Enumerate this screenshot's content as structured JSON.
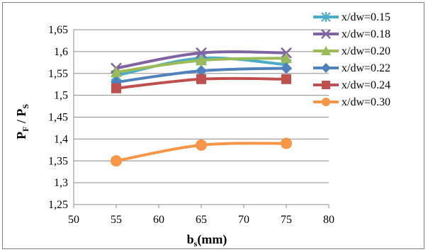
{
  "chart_data": {
    "type": "line",
    "x": [
      55,
      65,
      75
    ],
    "xlim": [
      50,
      80
    ],
    "xticks": [
      "50",
      "55",
      "60",
      "65",
      "70",
      "75",
      "80"
    ],
    "ylim": [
      1.25,
      1.65
    ],
    "yticks": [
      "1,25",
      "1,3",
      "1,35",
      "1,4",
      "1,45",
      "1,5",
      "1,55",
      "1,6",
      "1,65"
    ],
    "grid": "horizontal",
    "legend": "top-right",
    "xlabel": {
      "main": "b",
      "sub": "s",
      "tail": "(mm)"
    },
    "ylabel": {
      "p1": "P",
      "s1": "F",
      "mid": " / ",
      "p2": "P",
      "s2": "S"
    },
    "series": [
      {
        "name": "x/dw=0.15",
        "values": [
          1.545,
          1.585,
          1.57
        ],
        "color": "#4bacc6",
        "marker": "star"
      },
      {
        "name": "x/dw=0.18",
        "values": [
          1.562,
          1.597,
          1.597
        ],
        "color": "#8064a2",
        "marker": "x"
      },
      {
        "name": "x/dw=0.20",
        "values": [
          1.553,
          1.58,
          1.585
        ],
        "color": "#9bbb59",
        "marker": "triangle"
      },
      {
        "name": "x/dw=0.22",
        "values": [
          1.53,
          1.556,
          1.562
        ],
        "color": "#4f81bd",
        "marker": "diamond"
      },
      {
        "name": "x/dw=0.24",
        "values": [
          1.516,
          1.537,
          1.537
        ],
        "color": "#c0504d",
        "marker": "square"
      },
      {
        "name": "x/dw=0.30",
        "values": [
          1.35,
          1.386,
          1.39
        ],
        "color": "#f79646",
        "marker": "circle"
      }
    ]
  }
}
